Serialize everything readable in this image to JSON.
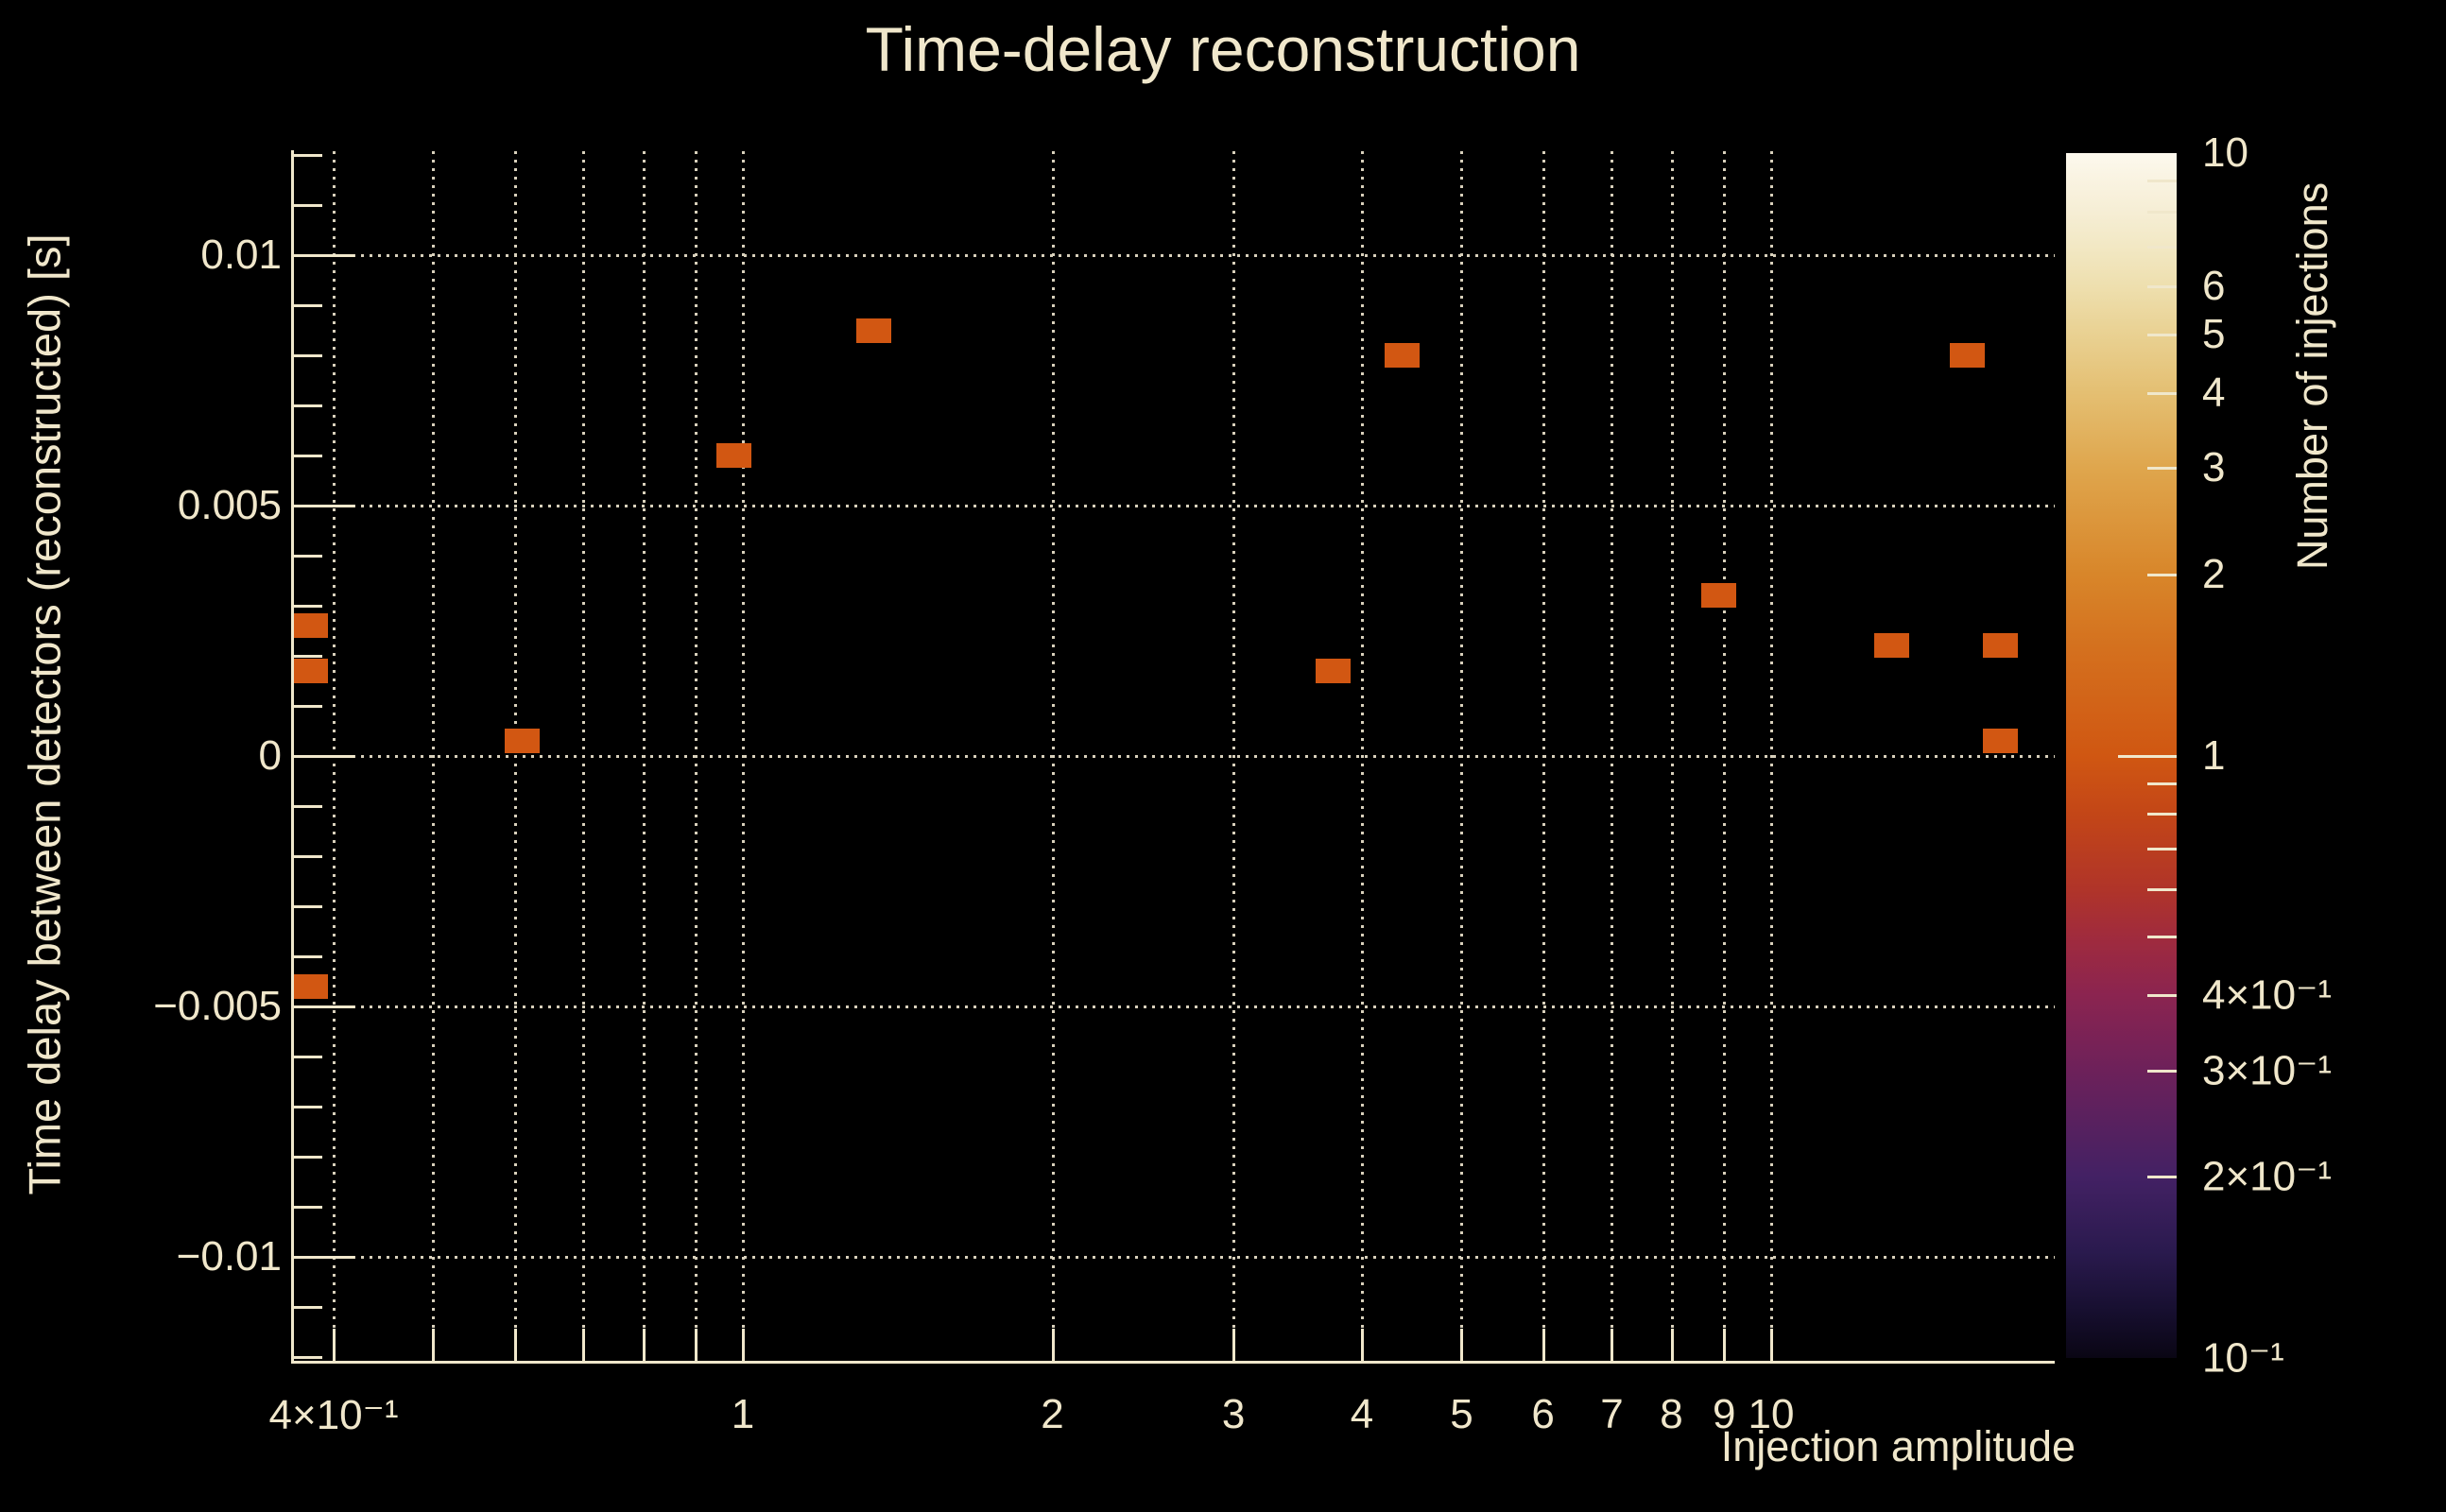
{
  "title": "Time-delay reconstruction",
  "colors": {
    "background": "#000000",
    "text": "#f0e7cb",
    "grid": "#d8d0bb",
    "axis": "#f0e7cb",
    "bin_fill": "#d25712"
  },
  "x_axis": {
    "label": "Injection amplitude",
    "scale": "log",
    "range": [
      0.365,
      18.8
    ],
    "gridlines": [
      0.4,
      0.5,
      0.6,
      0.7,
      0.8,
      0.9,
      1,
      2,
      3,
      4,
      5,
      6,
      7,
      8,
      9,
      10
    ],
    "ticks": [
      {
        "value": 0.4,
        "label": "4×10⁻¹"
      },
      {
        "value": 1,
        "label": "1"
      },
      {
        "value": 2,
        "label": "2"
      },
      {
        "value": 3,
        "label": "3"
      },
      {
        "value": 4,
        "label": "4"
      },
      {
        "value": 5,
        "label": "5"
      },
      {
        "value": 6,
        "label": "6"
      },
      {
        "value": 7,
        "label": "7"
      },
      {
        "value": 8,
        "label": "8"
      },
      {
        "value": 9,
        "label": "9"
      },
      {
        "value": 10,
        "label": "10"
      }
    ]
  },
  "y_axis": {
    "label": "Time delay between detectors (reconstructed) [s]",
    "scale": "linear",
    "range": [
      -0.0122,
      0.0121
    ],
    "minor_tick_step": 0.001,
    "ticks": [
      {
        "value": 0.01,
        "label": "0.01"
      },
      {
        "value": 0.005,
        "label": "0.005"
      },
      {
        "value": 0,
        "label": "0"
      },
      {
        "value": -0.005,
        "label": "−0.005"
      },
      {
        "value": -0.01,
        "label": "−0.01"
      }
    ]
  },
  "colorbar": {
    "label": "Number of injections",
    "scale": "log",
    "range": [
      0.1,
      10
    ],
    "tick_labels": [
      {
        "value": 10,
        "label": "10"
      },
      {
        "value": 6,
        "label": "6"
      },
      {
        "value": 5,
        "label": "5"
      },
      {
        "value": 4,
        "label": "4"
      },
      {
        "value": 3,
        "label": "3"
      },
      {
        "value": 2,
        "label": "2"
      },
      {
        "value": 1,
        "label": "1"
      },
      {
        "value": 0.4,
        "label": "4×10⁻¹"
      },
      {
        "value": 0.3,
        "label": "3×10⁻¹"
      },
      {
        "value": 0.2,
        "label": "2×10⁻¹"
      },
      {
        "value": 0.1,
        "label": "10⁻¹"
      }
    ],
    "minor_ticks": [
      9,
      8,
      7,
      6,
      5,
      4,
      3,
      2,
      0.9,
      0.8,
      0.7,
      0.6,
      0.5,
      0.4,
      0.3,
      0.2
    ],
    "major_ticks": [
      1
    ],
    "gradient": [
      {
        "value": 10,
        "color": "#fdf9ee"
      },
      {
        "value": 9,
        "color": "#f9f3e1"
      },
      {
        "value": 8,
        "color": "#f6eed5"
      },
      {
        "value": 7,
        "color": "#f2e8c4"
      },
      {
        "value": 6,
        "color": "#eedfae"
      },
      {
        "value": 5,
        "color": "#e9d192"
      },
      {
        "value": 4,
        "color": "#e4bf72"
      },
      {
        "value": 3,
        "color": "#dfa64d"
      },
      {
        "value": 2,
        "color": "#d8862a"
      },
      {
        "value": 1.5,
        "color": "#d4701e"
      },
      {
        "value": 1,
        "color": "#d05712"
      },
      {
        "value": 0.8,
        "color": "#c34617"
      },
      {
        "value": 0.6,
        "color": "#b03429"
      },
      {
        "value": 0.5,
        "color": "#a02b3d"
      },
      {
        "value": 0.4,
        "color": "#8b2450"
      },
      {
        "value": 0.3,
        "color": "#6d215a"
      },
      {
        "value": 0.2,
        "color": "#432164"
      },
      {
        "value": 0.15,
        "color": "#2a1a4e"
      },
      {
        "value": 0.12,
        "color": "#170f30"
      },
      {
        "value": 0.1,
        "color": "#0a0614"
      }
    ]
  },
  "chart_data": {
    "type": "heatmap",
    "title": "Time-delay reconstruction",
    "xlabel": "Injection amplitude",
    "ylabel": "Time delay between detectors (reconstructed) [s]",
    "zlabel": "Number of injections",
    "x_scale": "log",
    "y_scale": "linear",
    "z_scale": "log",
    "xlim": [
      0.365,
      18.8
    ],
    "ylim": [
      -0.0122,
      0.0121
    ],
    "zlim": [
      0.1,
      10
    ],
    "grid": "dotted",
    "points": [
      {
        "x": 0.38,
        "y": 0.0026,
        "count": 1
      },
      {
        "x": 0.38,
        "y": 0.0017,
        "count": 1
      },
      {
        "x": 0.38,
        "y": -0.0046,
        "count": 1
      },
      {
        "x": 0.61,
        "y": 0.0003,
        "count": 1
      },
      {
        "x": 0.98,
        "y": 0.006,
        "count": 1
      },
      {
        "x": 1.34,
        "y": 0.0085,
        "count": 1
      },
      {
        "x": 3.75,
        "y": 0.0017,
        "count": 1
      },
      {
        "x": 4.38,
        "y": 0.008,
        "count": 1
      },
      {
        "x": 8.9,
        "y": 0.0032,
        "count": 1
      },
      {
        "x": 13.1,
        "y": 0.0022,
        "count": 1
      },
      {
        "x": 15.5,
        "y": 0.008,
        "count": 1
      },
      {
        "x": 16.7,
        "y": 0.0022,
        "count": 1
      },
      {
        "x": 16.7,
        "y": 0.0003,
        "count": 1
      }
    ],
    "bin_size_px": {
      "w": 37,
      "h": 26
    }
  }
}
